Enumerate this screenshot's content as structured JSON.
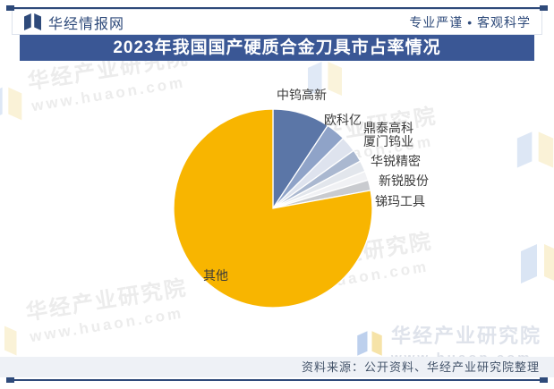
{
  "header": {
    "brand": "华经情报网",
    "slogan": "专业严谨 • 客观科学"
  },
  "banner": {
    "title": "2023年我国国产硬质合金刀具市占率情况"
  },
  "chart_data": {
    "type": "pie",
    "title": "2023年我国国产硬质合金刀具市占率情况",
    "unit": "%",
    "categories": [
      "中钨高新",
      "欧科亿",
      "鼎泰高科",
      "厦门钨业",
      "华锐精密",
      "新锐股份",
      "锑玛工具",
      "其他"
    ],
    "values": [
      9.3,
      3.2,
      2.6,
      2.0,
      1.8,
      1.5,
      1.7,
      77.9
    ],
    "colors": [
      "#5B76A7",
      "#8FA3C8",
      "#DEE3EE",
      "#AAB8D0",
      "#E2E6EC",
      "#F0F1F4",
      "#C9CBCF",
      "#F8B500"
    ],
    "start_angle_deg": 0,
    "clockwise": true,
    "data_labels_shown": false,
    "category_labels_shown": true
  },
  "watermark": {
    "name": "华经产业研究院",
    "url": "www.huaon.com"
  },
  "footer": {
    "brand": "华经产业研究院",
    "brand_url": "www.huaon.com",
    "source": "资料来源：公开资料、华经产业研究院整理"
  },
  "colors": {
    "brand_blue": "#2E4A7A",
    "banner_bg": "#3A5795",
    "other_slice_yellow": "#F8B500",
    "source_bar_bg": "#EEF1F6"
  }
}
